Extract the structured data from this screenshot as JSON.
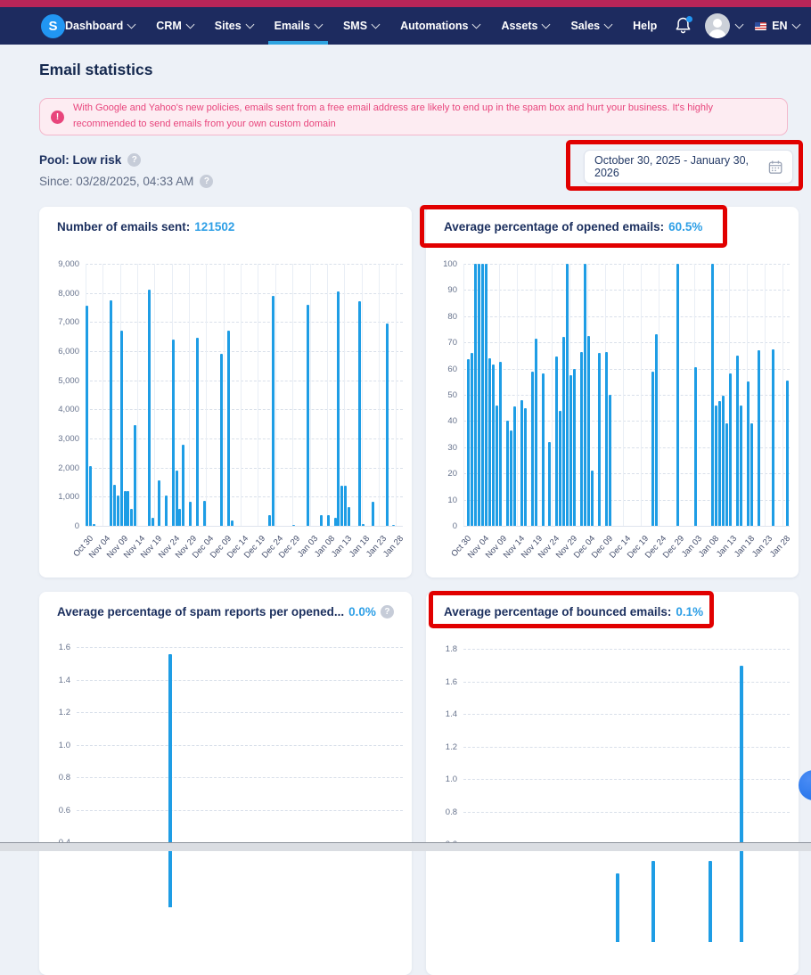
{
  "nav": {
    "logo_letter": "S",
    "items": [
      {
        "label": "Dashboard",
        "chevron": true,
        "active": false
      },
      {
        "label": "CRM",
        "chevron": true,
        "active": false
      },
      {
        "label": "Sites",
        "chevron": true,
        "active": false
      },
      {
        "label": "Emails",
        "chevron": true,
        "active": true
      },
      {
        "label": "SMS",
        "chevron": true,
        "active": false
      },
      {
        "label": "Automations",
        "chevron": true,
        "active": false
      },
      {
        "label": "Assets",
        "chevron": true,
        "active": false
      },
      {
        "label": "Sales",
        "chevron": true,
        "active": false
      },
      {
        "label": "Help",
        "chevron": false,
        "active": false
      }
    ],
    "language": "EN",
    "notification_dot": true
  },
  "page": {
    "title": "Email statistics"
  },
  "alert": {
    "text": "With Google and Yahoo's new policies, emails sent from a free email address are likely to end up in the spam box and hurt your business. It's highly recommended to send emails from your own custom domain"
  },
  "icons": {
    "alert": "!",
    "help": "?"
  },
  "pool": {
    "text": "Pool: Low risk"
  },
  "since": {
    "text": "Since: 03/28/2025, 04:33 AM"
  },
  "date_range": {
    "value": "October 30, 2025 - January 30, 2026"
  },
  "colors": {
    "accent_blue": "#2e9fe6",
    "bar_blue": "#1e9de5",
    "navy": "#1b2f5e",
    "alert_pink": "#e8457c",
    "annotation_red": "#e10000",
    "top_strip": "#b82558",
    "nav_bg": "#1d2b5f"
  },
  "chart_data": [
    {
      "type": "bar",
      "title": "Number of emails sent:",
      "stat_value": "121502",
      "ylim": [
        0,
        9000
      ],
      "yticks": [
        9000,
        8000,
        7000,
        6000,
        5000,
        4000,
        3000,
        2000,
        1000,
        0
      ],
      "ytick_labels": [
        "9,000",
        "8,000",
        "7,000",
        "6,000",
        "5,000",
        "4,000",
        "3,000",
        "2,000",
        "1,000",
        "0"
      ],
      "xticks_days": [
        0,
        5,
        10,
        15,
        20,
        25,
        30,
        35,
        40,
        45,
        50,
        55,
        60,
        65,
        70,
        75,
        80,
        85,
        90
      ],
      "xtick_labels": [
        "Oct 30",
        "Nov 04",
        "Nov 09",
        "Nov 14",
        "Nov 19",
        "Nov 24",
        "Nov 29",
        "Dec 04",
        "Dec 09",
        "Dec 14",
        "Dec 19",
        "Dec 24",
        "Dec 29",
        "Jan 03",
        "Jan 08",
        "Jan 13",
        "Jan 18",
        "Jan 23",
        "Jan 28"
      ],
      "total_days": 92,
      "bars": [
        [
          0,
          7550
        ],
        [
          1,
          2050
        ],
        [
          2,
          60
        ],
        [
          7,
          7750
        ],
        [
          8,
          1400
        ],
        [
          9,
          1030
        ],
        [
          10,
          6700
        ],
        [
          11,
          1200
        ],
        [
          12,
          1200
        ],
        [
          13,
          575
        ],
        [
          14,
          3450
        ],
        [
          18,
          8100
        ],
        [
          19,
          280
        ],
        [
          21,
          1550
        ],
        [
          23,
          1050
        ],
        [
          25,
          6400
        ],
        [
          26,
          1900
        ],
        [
          27,
          580
        ],
        [
          28,
          2780
        ],
        [
          30,
          830
        ],
        [
          32,
          6450
        ],
        [
          34,
          870
        ],
        [
          39,
          5900
        ],
        [
          41,
          6700
        ],
        [
          42,
          190
        ],
        [
          53,
          380
        ],
        [
          54,
          7900
        ],
        [
          60,
          25
        ],
        [
          64,
          7600
        ],
        [
          68,
          370
        ],
        [
          70,
          380
        ],
        [
          72,
          270
        ],
        [
          73,
          8050
        ],
        [
          74,
          1370
        ],
        [
          75,
          1370
        ],
        [
          76,
          650
        ],
        [
          79,
          7700
        ],
        [
          80,
          60
        ],
        [
          83,
          830
        ],
        [
          87,
          6950
        ],
        [
          89,
          30
        ]
      ]
    },
    {
      "type": "bar",
      "title": "Average percentage of opened emails:",
      "stat_value": "60.5%",
      "ylim": [
        0,
        100
      ],
      "yticks": [
        100,
        90,
        80,
        70,
        60,
        50,
        40,
        30,
        20,
        10,
        0
      ],
      "ytick_labels": [
        "100",
        "90",
        "80",
        "70",
        "60",
        "50",
        "40",
        "30",
        "20",
        "10",
        "0"
      ],
      "xticks_days": [
        0,
        5,
        10,
        15,
        20,
        25,
        30,
        35,
        40,
        45,
        50,
        55,
        60,
        65,
        70,
        75,
        80,
        85,
        90
      ],
      "xtick_labels": [
        "Oct 30",
        "Nov 04",
        "Nov 09",
        "Nov 14",
        "Nov 19",
        "Nov 24",
        "Nov 29",
        "Dec 04",
        "Dec 09",
        "Dec 14",
        "Dec 19",
        "Dec 24",
        "Dec 29",
        "Jan 03",
        "Jan 08",
        "Jan 13",
        "Jan 18",
        "Jan 23",
        "Jan 28"
      ],
      "total_days": 92,
      "bars": [
        [
          1,
          63.5
        ],
        [
          2,
          66
        ],
        [
          3,
          100
        ],
        [
          4,
          100
        ],
        [
          5,
          100
        ],
        [
          6,
          100
        ],
        [
          7,
          64
        ],
        [
          8,
          61.5
        ],
        [
          9,
          46
        ],
        [
          10,
          62.5
        ],
        [
          12,
          40
        ],
        [
          13,
          36.5
        ],
        [
          14,
          45.5
        ],
        [
          16,
          48
        ],
        [
          17,
          45
        ],
        [
          19,
          59
        ],
        [
          20,
          71.5
        ],
        [
          22,
          58
        ],
        [
          24,
          32
        ],
        [
          26,
          64.5
        ],
        [
          27,
          44
        ],
        [
          28,
          72
        ],
        [
          29,
          100
        ],
        [
          30,
          57.5
        ],
        [
          31,
          60
        ],
        [
          33,
          66.5
        ],
        [
          34,
          100
        ],
        [
          35,
          72.5
        ],
        [
          36,
          21
        ],
        [
          38,
          66
        ],
        [
          40,
          66.5
        ],
        [
          41,
          50
        ],
        [
          53,
          59
        ],
        [
          54,
          73
        ],
        [
          60,
          100
        ],
        [
          65,
          60.5
        ],
        [
          70,
          100
        ],
        [
          71,
          46
        ],
        [
          72,
          47.5
        ],
        [
          73,
          49.5
        ],
        [
          74,
          39
        ],
        [
          75,
          58
        ],
        [
          77,
          65
        ],
        [
          78,
          46
        ],
        [
          80,
          55
        ],
        [
          81,
          39
        ],
        [
          83,
          67
        ],
        [
          87,
          67.2
        ],
        [
          91,
          55.5
        ]
      ]
    },
    {
      "type": "bar",
      "title": "Average percentage of spam reports per opened...",
      "stat_value": "0.0%",
      "has_help_icon": true,
      "ylim": [
        0,
        1.6
      ],
      "yticks": [
        1.6,
        1.4,
        1.2,
        1.0,
        0.8,
        0.6,
        0.4
      ],
      "ytick_labels": [
        "1.6",
        "1.4",
        "1.2",
        "1.0",
        "0.8",
        "0.6",
        "0.4"
      ],
      "total_days": 92,
      "bars": [
        [
          26,
          1.56
        ]
      ]
    },
    {
      "type": "bar",
      "title": "Average percentage of bounced emails:",
      "stat_value": "0.1%",
      "ylim": [
        0,
        1.8
      ],
      "yticks": [
        1.8,
        1.6,
        1.4,
        1.2,
        1.0,
        0.8,
        0.6
      ],
      "ytick_labels": [
        "1.8",
        "1.6",
        "1.4",
        "1.2",
        "1.0",
        "0.8",
        "0.6"
      ],
      "total_days": 92,
      "bars": [
        [
          43,
          0.42
        ],
        [
          53,
          0.5
        ],
        [
          69,
          0.5
        ],
        [
          78,
          1.7
        ]
      ]
    }
  ]
}
